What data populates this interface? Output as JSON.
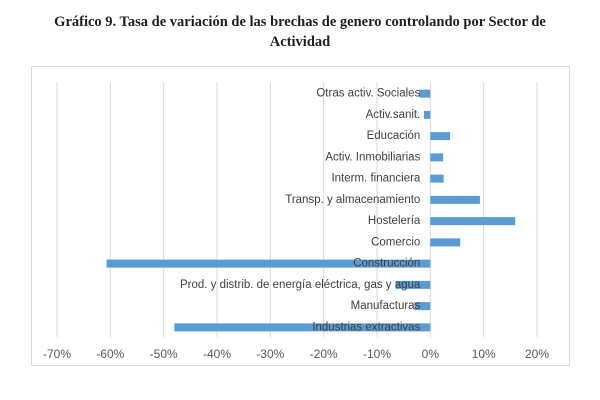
{
  "title_line1": "Gráfico 9. Tasa de variación de las brechas de genero controlando por Sector de",
  "title_line2": "Actividad",
  "chart_data": {
    "type": "bar",
    "orientation": "horizontal",
    "title": "Gráfico 9. Tasa de variación de las brechas de genero controlando por Sector de Actividad",
    "categories": [
      "Otras activ. Sociales",
      "Activ.sanit.",
      "Educación",
      "Activ. Inmobiliarias",
      "Interm. financiera",
      "Transp. y almacenamiento",
      "Hostelería",
      "Comercio",
      "Construcción",
      "Prod. y distrib. de energía eléctrica, gas y agua",
      "Manufacturas",
      "Industrias extractivas"
    ],
    "values": [
      -0.021,
      -0.012,
      0.037,
      0.024,
      0.025,
      0.093,
      0.159,
      0.056,
      -0.607,
      -0.065,
      -0.03,
      -0.48
    ],
    "xlim": [
      -0.7,
      0.2
    ],
    "xticks": [
      -0.7,
      -0.6,
      -0.5,
      -0.4,
      -0.3,
      -0.2,
      -0.1,
      0,
      0.1,
      0.2
    ],
    "xtick_labels": [
      "-70%",
      "-60%",
      "-50%",
      "-40%",
      "-30%",
      "-20%",
      "-10%",
      "0%",
      "10%",
      "20%"
    ],
    "xlabel": "",
    "ylabel": "",
    "grid": true,
    "color": "#5b9bd5"
  }
}
